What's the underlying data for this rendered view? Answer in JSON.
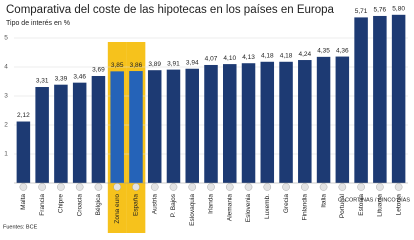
{
  "chart_data": {
    "type": "bar",
    "title": "Comparativa del coste de las hipotecas en los países en Europa",
    "subtitle": "Tipo de interés en %",
    "categories": [
      "Malta",
      "Francia",
      "Chipre",
      "Croacia",
      "Bélgica",
      "Zona euro",
      "España",
      "Austria",
      "P. Bajos",
      "Eslovaquia",
      "Irlanda",
      "Alemania",
      "Eslovenia",
      "Luxemb.",
      "Grecia",
      "Finlandia",
      "Italia",
      "Portugal",
      "Estonia",
      "Lituania",
      "Letonia"
    ],
    "values": [
      2.12,
      3.31,
      3.39,
      3.46,
      3.69,
      3.85,
      3.86,
      3.89,
      3.91,
      3.94,
      4.07,
      4.1,
      4.13,
      4.18,
      4.18,
      4.24,
      4.35,
      4.36,
      5.71,
      5.76,
      5.8
    ],
    "value_labels": [
      "2,12",
      "3,31",
      "3,39",
      "3,46",
      "3,69",
      "3,85",
      "3,86",
      "3,89",
      "3,91",
      "3,94",
      "4,07",
      "4,10",
      "4,13",
      "4,18",
      "4,18",
      "4,24",
      "4,35",
      "4,36",
      "5,71",
      "5,76",
      "5,80"
    ],
    "color": "#1d3a73",
    "highlight": [
      "Zona euro",
      "España"
    ],
    "highlight_color": "#2563b8",
    "highlight_background": "#f6c21c",
    "ylim": [
      0,
      6
    ],
    "yticks": [
      1,
      2,
      3,
      4,
      5
    ],
    "grid": true,
    "source": "Fuentes: BCE",
    "credit": "C. CORTINAS / CINCO DÍAS"
  }
}
